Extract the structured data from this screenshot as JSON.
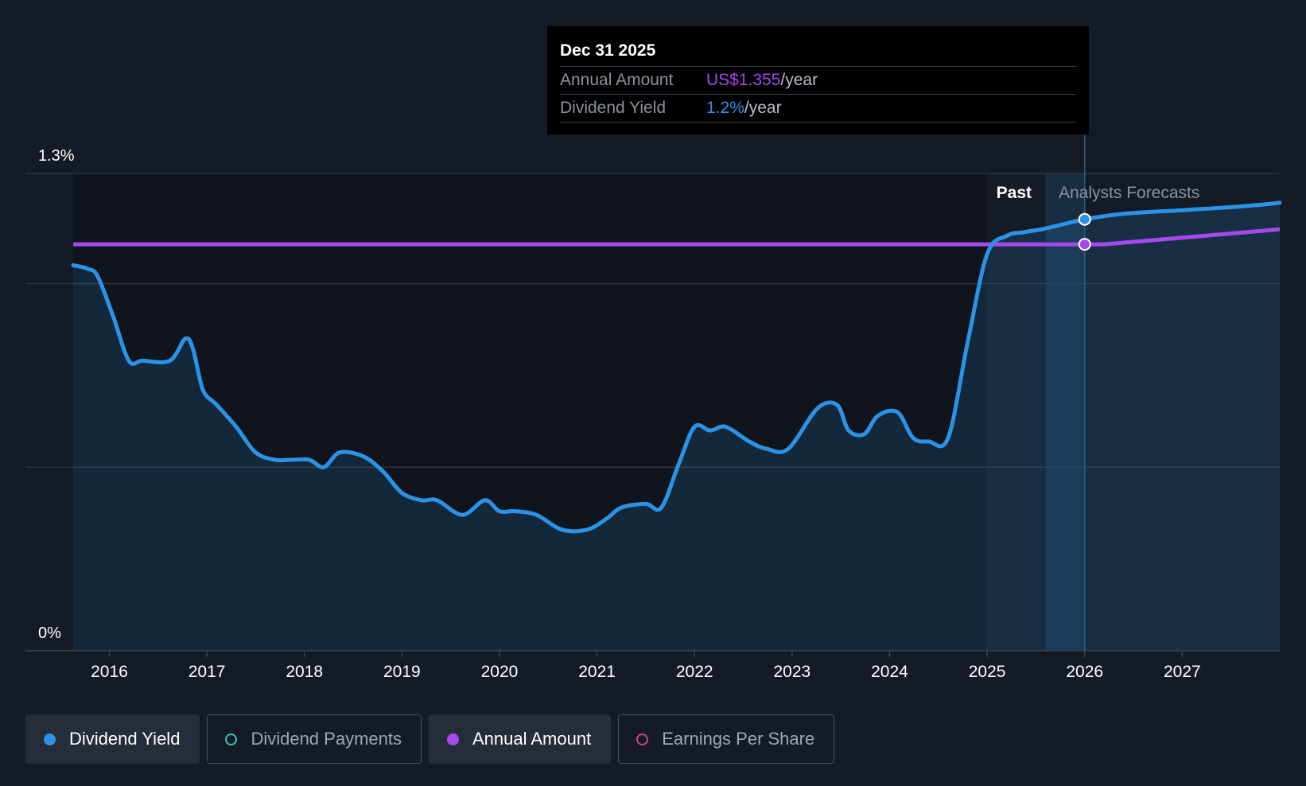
{
  "tooltip": {
    "date": "Dec 31 2025",
    "annual_amount_label": "Annual Amount",
    "annual_amount_value": "US$1.355",
    "annual_amount_unit": "/year",
    "dividend_yield_label": "Dividend Yield",
    "dividend_yield_value": "1.2%",
    "dividend_yield_unit": "/year"
  },
  "regions": {
    "past_label": "Past",
    "forecast_label": "Analysts Forecasts"
  },
  "legend": [
    {
      "label": "Dividend Yield",
      "color": "#2b93e6",
      "active": true,
      "marker": "filled"
    },
    {
      "label": "Dividend Payments",
      "color": "#3fc2b1",
      "active": false,
      "marker": "outline"
    },
    {
      "label": "Annual Amount",
      "color": "#a548ec",
      "active": true,
      "marker": "filled"
    },
    {
      "label": "Earnings Per Share",
      "color": "#d0427a",
      "active": false,
      "marker": "outline"
    }
  ],
  "colors": {
    "yield": "#2b93e6",
    "amount": "#a548ec",
    "background": "#151b26",
    "past_bg": "#10141c"
  },
  "chart_data": {
    "type": "line",
    "title": "",
    "x_tick_labels": [
      "2016",
      "2017",
      "2018",
      "2019",
      "2020",
      "2021",
      "2022",
      "2023",
      "2024",
      "2025",
      "2026",
      "2027"
    ],
    "x_ticks": [
      2016.0,
      2017.0,
      2018.0,
      2019.0,
      2020.0,
      2021.0,
      2022.0,
      2023.0,
      2024.0,
      2025.0,
      2026.0,
      2027.0
    ],
    "xlim": [
      2015.14,
      2028.0
    ],
    "y_tick_labels": [
      "1.3%",
      "0%"
    ],
    "y_ticks": [
      1.3,
      0
    ],
    "ylim": [
      0,
      1.3
    ],
    "gridlines": [
      0.5,
      1.0,
      1.3
    ],
    "past_region": [
      2015.63,
      2025.0
    ],
    "forecast_start": 2025.0,
    "highlight_band": [
      2025.6,
      2026.0
    ],
    "cursor_x": 2026.0,
    "series": [
      {
        "name": "Dividend Yield",
        "color": "#2b93e6",
        "fill": true,
        "x": [
          2015.63,
          2015.78,
          2015.88,
          2016.04,
          2016.2,
          2016.34,
          2016.62,
          2016.78,
          2016.86,
          2016.96,
          2017.1,
          2017.3,
          2017.5,
          2017.7,
          2017.85,
          2018.05,
          2018.2,
          2018.36,
          2018.6,
          2018.8,
          2019.0,
          2019.2,
          2019.36,
          2019.62,
          2019.85,
          2020.0,
          2020.16,
          2020.38,
          2020.64,
          2020.9,
          2021.1,
          2021.25,
          2021.5,
          2021.66,
          2021.84,
          2022.0,
          2022.16,
          2022.32,
          2022.56,
          2022.74,
          2022.96,
          2023.26,
          2023.46,
          2023.58,
          2023.74,
          2023.88,
          2024.08,
          2024.24,
          2024.4,
          2024.6,
          2024.8,
          2025.0,
          2025.2,
          2025.38,
          2025.6,
          2026.0,
          2026.4,
          2027.0,
          2027.6,
          2028.0
        ],
        "y": [
          1.05,
          1.04,
          1.02,
          0.91,
          0.79,
          0.79,
          0.79,
          0.85,
          0.82,
          0.71,
          0.67,
          0.61,
          0.54,
          0.52,
          0.52,
          0.52,
          0.5,
          0.54,
          0.53,
          0.49,
          0.43,
          0.41,
          0.41,
          0.37,
          0.41,
          0.38,
          0.38,
          0.37,
          0.33,
          0.33,
          0.36,
          0.39,
          0.4,
          0.39,
          0.51,
          0.61,
          0.6,
          0.61,
          0.57,
          0.55,
          0.55,
          0.66,
          0.67,
          0.6,
          0.59,
          0.64,
          0.65,
          0.58,
          0.57,
          0.58,
          0.84,
          1.08,
          1.13,
          1.14,
          1.15,
          1.175,
          1.19,
          1.2,
          1.21,
          1.22
        ]
      },
      {
        "name": "Annual Amount",
        "color": "#a548ec",
        "fill": false,
        "x": [
          2015.63,
          2025.0,
          2026.0,
          2026.2,
          2027.0,
          2028.0
        ],
        "y": [
          1.107,
          1.107,
          1.107,
          1.107,
          1.125,
          1.148
        ]
      }
    ],
    "cursor_points": [
      {
        "series": "Dividend Yield",
        "x": 2026.0,
        "y": 1.175,
        "color": "#2b93e6"
      },
      {
        "series": "Annual Amount",
        "x": 2026.0,
        "y": 1.107,
        "color": "#a548ec"
      }
    ]
  }
}
